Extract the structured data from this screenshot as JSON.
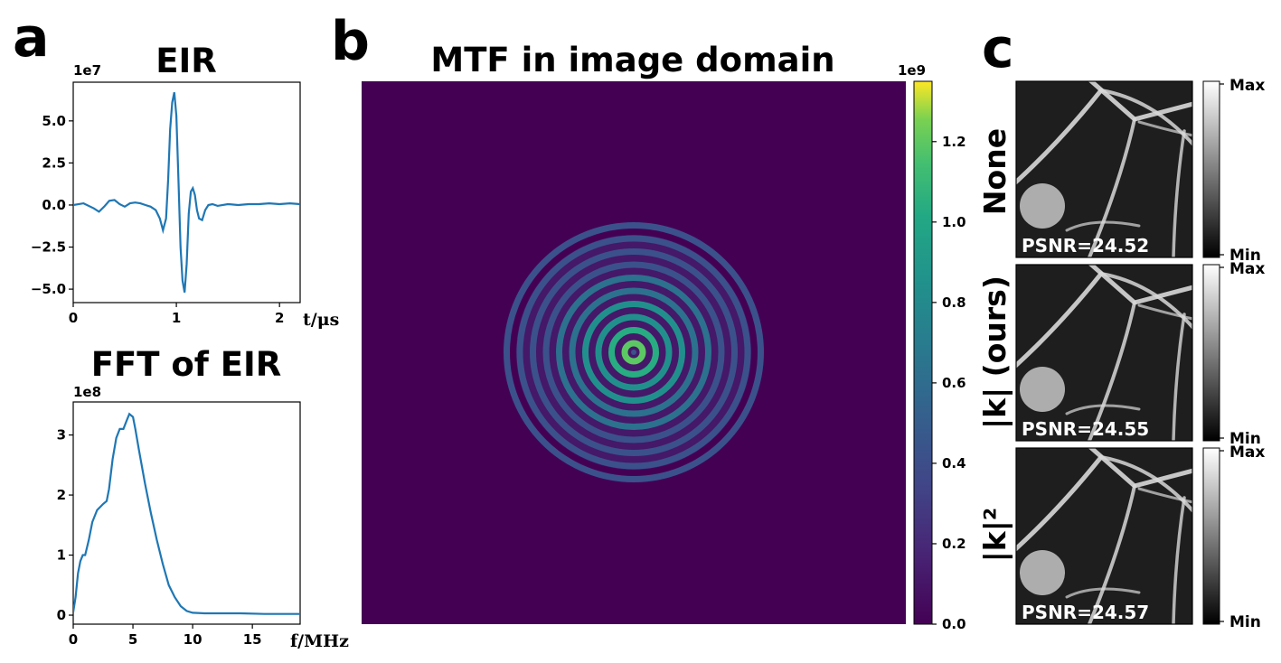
{
  "panel_labels": {
    "a": "a",
    "b": "b",
    "c": "c"
  },
  "chart_data": [
    {
      "type": "line",
      "title": "EIR",
      "xlabel": "t/μs",
      "ylabel": "",
      "y_multiplier": "1e7",
      "xlim": [
        0,
        2.2
      ],
      "ylim": [
        -5.8,
        7.3
      ],
      "x_ticks": [
        0,
        1,
        2
      ],
      "x_tick_labels": [
        "0",
        "1",
        "2"
      ],
      "y_ticks": [
        5.0,
        2.5,
        0.0,
        -2.5,
        -5.0
      ],
      "y_tick_labels": [
        "5.0",
        "2.5",
        "0.0",
        "−2.5",
        "−5.0"
      ],
      "line_color": "#1f77b4",
      "series": [
        {
          "x": [
            0,
            0.1,
            0.2,
            0.25,
            0.3,
            0.35,
            0.4,
            0.45,
            0.5,
            0.55,
            0.6,
            0.65,
            0.7,
            0.75,
            0.8,
            0.84,
            0.87,
            0.9,
            0.92,
            0.94,
            0.96,
            0.98,
            1.0,
            1.02,
            1.04,
            1.06,
            1.08,
            1.1,
            1.12,
            1.14,
            1.16,
            1.18,
            1.2,
            1.22,
            1.25,
            1.28,
            1.31,
            1.35,
            1.4,
            1.5,
            1.6,
            1.7,
            1.8,
            1.9,
            2.0,
            2.1,
            2.2
          ],
          "y": [
            0,
            0.1,
            -0.2,
            -0.4,
            -0.1,
            0.25,
            0.3,
            0.05,
            -0.1,
            0.1,
            0.15,
            0.1,
            0.0,
            -0.1,
            -0.3,
            -0.8,
            -1.5,
            -0.8,
            1.5,
            4.5,
            6.1,
            6.7,
            5.3,
            1.5,
            -2.5,
            -4.5,
            -5.2,
            -3.5,
            -0.5,
            0.8,
            1.0,
            0.6,
            -0.3,
            -0.8,
            -0.9,
            -0.3,
            0.0,
            0.05,
            -0.05,
            0.05,
            0.0,
            0.05,
            0.05,
            0.1,
            0.05,
            0.1,
            0.05
          ]
        }
      ]
    },
    {
      "type": "line",
      "title": "FFT of EIR",
      "xlabel": "f/MHz",
      "ylabel": "",
      "y_multiplier": "1e8",
      "xlim": [
        0,
        19
      ],
      "ylim": [
        -0.15,
        3.55
      ],
      "x_ticks": [
        0,
        5,
        10,
        15
      ],
      "x_tick_labels": [
        "0",
        "5",
        "10",
        "15"
      ],
      "y_ticks": [
        3,
        2,
        1,
        0
      ],
      "y_tick_labels": [
        "3",
        "2",
        "1",
        "0"
      ],
      "line_color": "#1f77b4",
      "series": [
        {
          "x": [
            0,
            0.2,
            0.4,
            0.6,
            0.8,
            1.0,
            1.3,
            1.6,
            2.0,
            2.5,
            2.8,
            3.0,
            3.3,
            3.6,
            3.9,
            4.2,
            4.5,
            4.7,
            5.0,
            5.2,
            5.5,
            6.0,
            6.5,
            7.0,
            7.5,
            8.0,
            8.5,
            9.0,
            9.5,
            10.0,
            11.0,
            12.0,
            14.0,
            16.0,
            18.0,
            19.0
          ],
          "y": [
            0.05,
            0.3,
            0.7,
            0.9,
            1.0,
            1.0,
            1.25,
            1.55,
            1.75,
            1.85,
            1.9,
            2.1,
            2.6,
            2.95,
            3.1,
            3.1,
            3.25,
            3.35,
            3.3,
            3.1,
            2.75,
            2.2,
            1.7,
            1.25,
            0.85,
            0.5,
            0.3,
            0.15,
            0.07,
            0.04,
            0.03,
            0.03,
            0.03,
            0.02,
            0.02,
            0.02
          ]
        }
      ]
    },
    {
      "type": "heatmap",
      "title": "MTF in image domain",
      "colormap": "viridis",
      "colorbar_multiplier": "1e9",
      "colorbar_range": [
        0.0,
        1.35
      ],
      "colorbar_ticks": [
        0.0,
        0.2,
        0.4,
        0.6,
        0.8,
        1.0,
        1.2
      ],
      "colorbar_tick_labels": [
        "0.0",
        "0.2",
        "0.4",
        "0.6",
        "0.8",
        "1.0",
        "1.2"
      ],
      "pattern": "concentric rings decaying outward, peak near 0.7"
    },
    {
      "type": "heatmap",
      "colormap": "gray",
      "panels": [
        {
          "row_label": "None",
          "psnr_text": "PSNR=24.52",
          "cbar_max": "Max",
          "cbar_min": "Min"
        },
        {
          "row_label": "|k| (ours)",
          "psnr_text": "PSNR=24.55",
          "cbar_max": "Max",
          "cbar_min": "Min"
        },
        {
          "row_label": "|k|²",
          "psnr_text": "PSNR=24.57",
          "cbar_max": "Max",
          "cbar_min": "Min"
        }
      ]
    }
  ]
}
